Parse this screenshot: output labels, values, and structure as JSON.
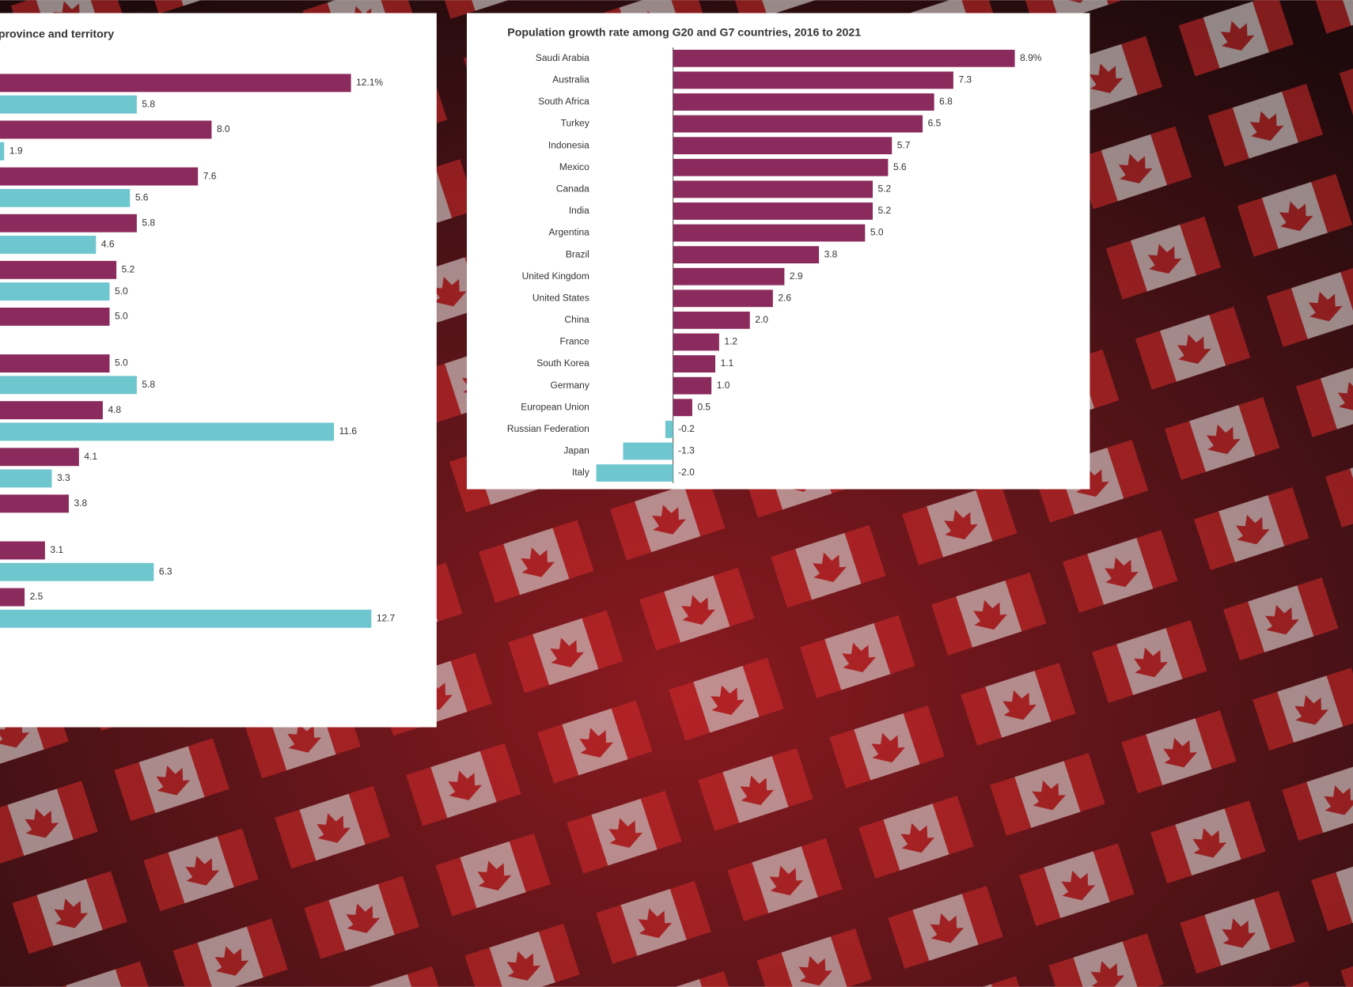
{
  "chart_data": [
    {
      "type": "bar",
      "orientation": "horizontal",
      "title": "province and territory",
      "categories": [
        null,
        null,
        null,
        null,
        null,
        null,
        null,
        null,
        null,
        null,
        null,
        null
      ],
      "series": [
        {
          "color": "#8b2a5c",
          "values": [
            12.1,
            8.0,
            7.6,
            5.8,
            5.2,
            5.0,
            5.0,
            4.8,
            4.1,
            3.8,
            3.1,
            2.5
          ],
          "value_labels": [
            "12.1%",
            "8.0",
            "7.6",
            "5.8",
            "5.2",
            "5.0",
            "5.0",
            "4.8",
            "4.1",
            "3.8",
            "3.1",
            "2.5"
          ]
        },
        {
          "color": "#6ec6cf",
          "values": [
            5.8,
            1.9,
            5.6,
            4.6,
            5.0,
            null,
            5.8,
            11.6,
            3.3,
            null,
            6.3,
            12.7
          ],
          "value_labels": [
            "5.8",
            "1.9",
            "5.6",
            "4.6",
            "5.0",
            null,
            "5.8",
            "11.6",
            "3.3",
            null,
            "6.3",
            "12.7"
          ]
        }
      ]
    },
    {
      "type": "bar",
      "orientation": "horizontal",
      "title": "Population growth rate among G20 and G7 countries, 2016 to 2021",
      "categories": [
        "Saudi Arabia",
        "Australia",
        "South Africa",
        "Turkey",
        "Indonesia",
        "Mexico",
        "Canada",
        "India",
        "Argentina",
        "Brazil",
        "United Kingdom",
        "United States",
        "China",
        "France",
        "South Korea",
        "Germany",
        "European Union",
        "Russian Federation",
        "Japan",
        "Italy"
      ],
      "values": [
        8.9,
        7.3,
        6.8,
        6.5,
        5.7,
        5.6,
        5.2,
        5.2,
        5.0,
        3.8,
        2.9,
        2.6,
        2.0,
        1.2,
        1.1,
        1.0,
        0.5,
        -0.2,
        -1.3,
        -2.0
      ],
      "value_labels": [
        "8.9%",
        "7.3",
        "6.8",
        "6.5",
        "5.7",
        "5.6",
        "5.2",
        "5.2",
        "5.0",
        "3.8",
        "2.9",
        "2.6",
        "2.0",
        "1.2",
        "1.1",
        "1.0",
        "0.5",
        "-0.2",
        "-1.3",
        "-2.0"
      ],
      "color": "#8b2a5c"
    }
  ]
}
